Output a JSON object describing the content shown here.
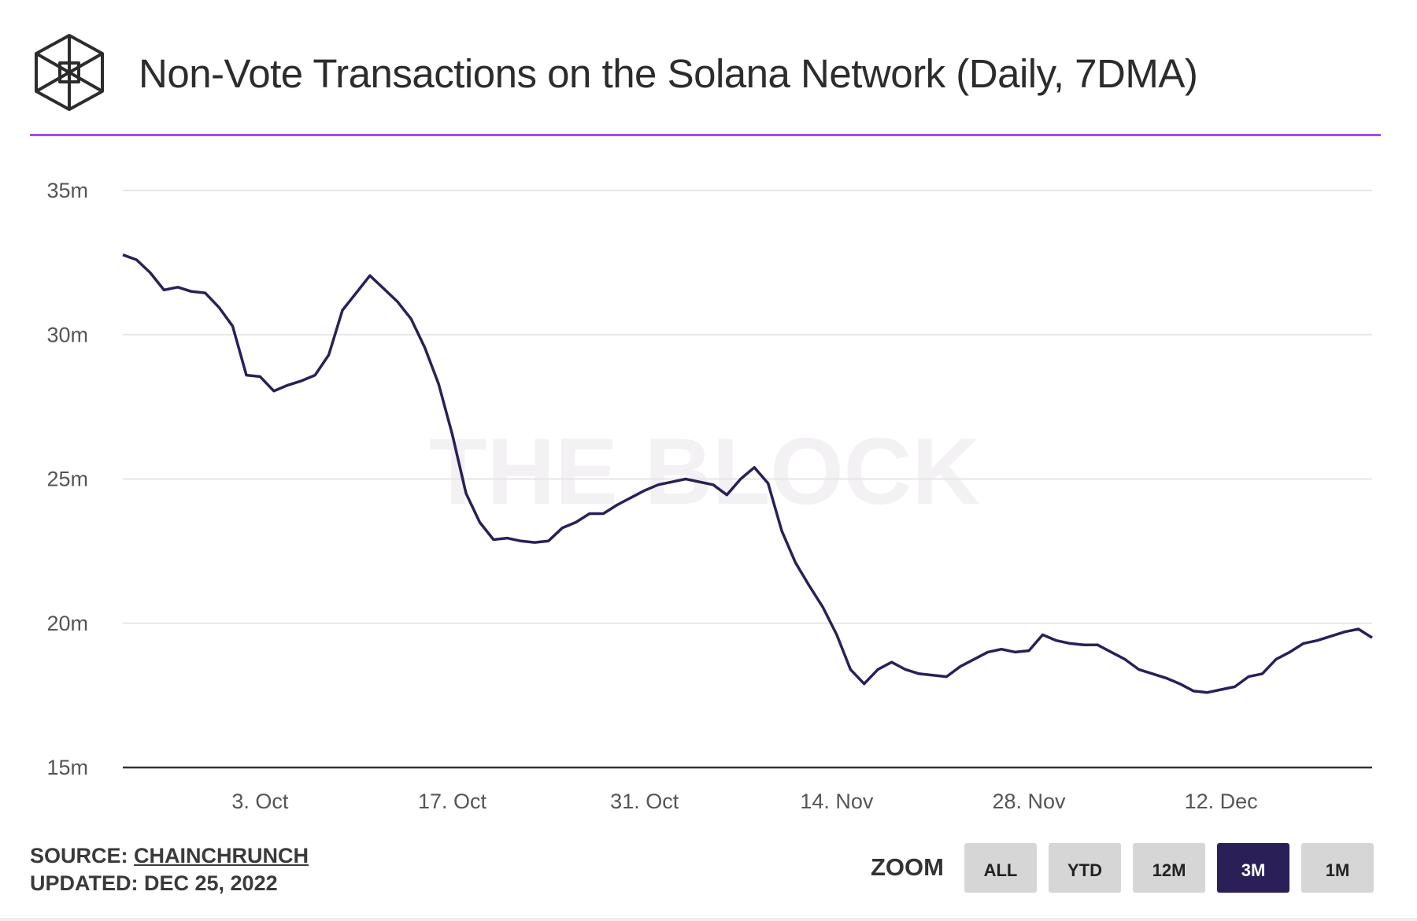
{
  "header": {
    "title": "Non-Vote Transactions on the Solana Network (Daily, 7DMA)",
    "logo_icon": "the-block-cube-logo"
  },
  "watermark": "THE BLOCK",
  "footer": {
    "source_label": "SOURCE:",
    "source_link": "CHAINCHRUNCH",
    "updated": "UPDATED: DEC 25, 2022"
  },
  "zoom": {
    "label": "ZOOM",
    "buttons": [
      "ALL",
      "YTD",
      "12M",
      "3M",
      "1M"
    ],
    "active": "3M"
  },
  "colors": {
    "line": "#2a2057",
    "accent_rule": "#a24ef0",
    "active_button": "#2a2057"
  },
  "chart_data": {
    "type": "line",
    "title": "Non-Vote Transactions on the Solana Network (Daily, 7DMA)",
    "xlabel": "",
    "ylabel": "",
    "x_start": "2022-09-23",
    "x_end": "2022-12-23",
    "x_ticks": [
      {
        "label": "3. Oct",
        "day": 10
      },
      {
        "label": "17. Oct",
        "day": 24
      },
      {
        "label": "31. Oct",
        "day": 38
      },
      {
        "label": "14. Nov",
        "day": 52
      },
      {
        "label": "28. Nov",
        "day": 66
      },
      {
        "label": "12. Dec",
        "day": 80
      }
    ],
    "y_ticks": [
      {
        "label": "15m",
        "value": 15
      },
      {
        "label": "20m",
        "value": 20
      },
      {
        "label": "25m",
        "value": 25
      },
      {
        "label": "30m",
        "value": 30
      },
      {
        "label": "35m",
        "value": 35
      }
    ],
    "ylim": [
      15,
      35
    ],
    "grid": true,
    "series": [
      {
        "name": "Non-vote transactions (7DMA, millions)",
        "values": [
          32.77,
          32.6,
          32.15,
          31.55,
          31.65,
          31.5,
          31.45,
          30.95,
          30.3,
          28.6,
          28.55,
          28.05,
          28.25,
          28.4,
          28.6,
          29.3,
          30.85,
          31.45,
          32.05,
          31.6,
          31.15,
          30.55,
          29.55,
          28.3,
          26.55,
          24.5,
          23.5,
          22.9,
          22.95,
          22.85,
          22.8,
          22.85,
          23.3,
          23.5,
          23.8,
          23.8,
          24.1,
          24.35,
          24.6,
          24.8,
          24.9,
          25.0,
          24.9,
          24.8,
          24.45,
          25.0,
          25.4,
          24.85,
          23.2,
          22.1,
          21.3,
          20.55,
          19.6,
          18.4,
          17.9,
          18.4,
          18.65,
          18.4,
          18.25,
          18.2,
          18.15,
          18.5,
          18.75,
          19.0,
          19.1,
          19.0,
          19.05,
          19.6,
          19.4,
          19.3,
          19.25,
          19.25,
          19.0,
          18.75,
          18.4,
          18.25,
          18.1,
          17.9,
          17.65,
          17.6,
          17.7,
          17.8,
          18.15,
          18.25,
          18.75,
          19.0,
          19.3,
          19.4,
          19.55,
          19.7,
          19.8,
          19.5
        ]
      }
    ]
  }
}
